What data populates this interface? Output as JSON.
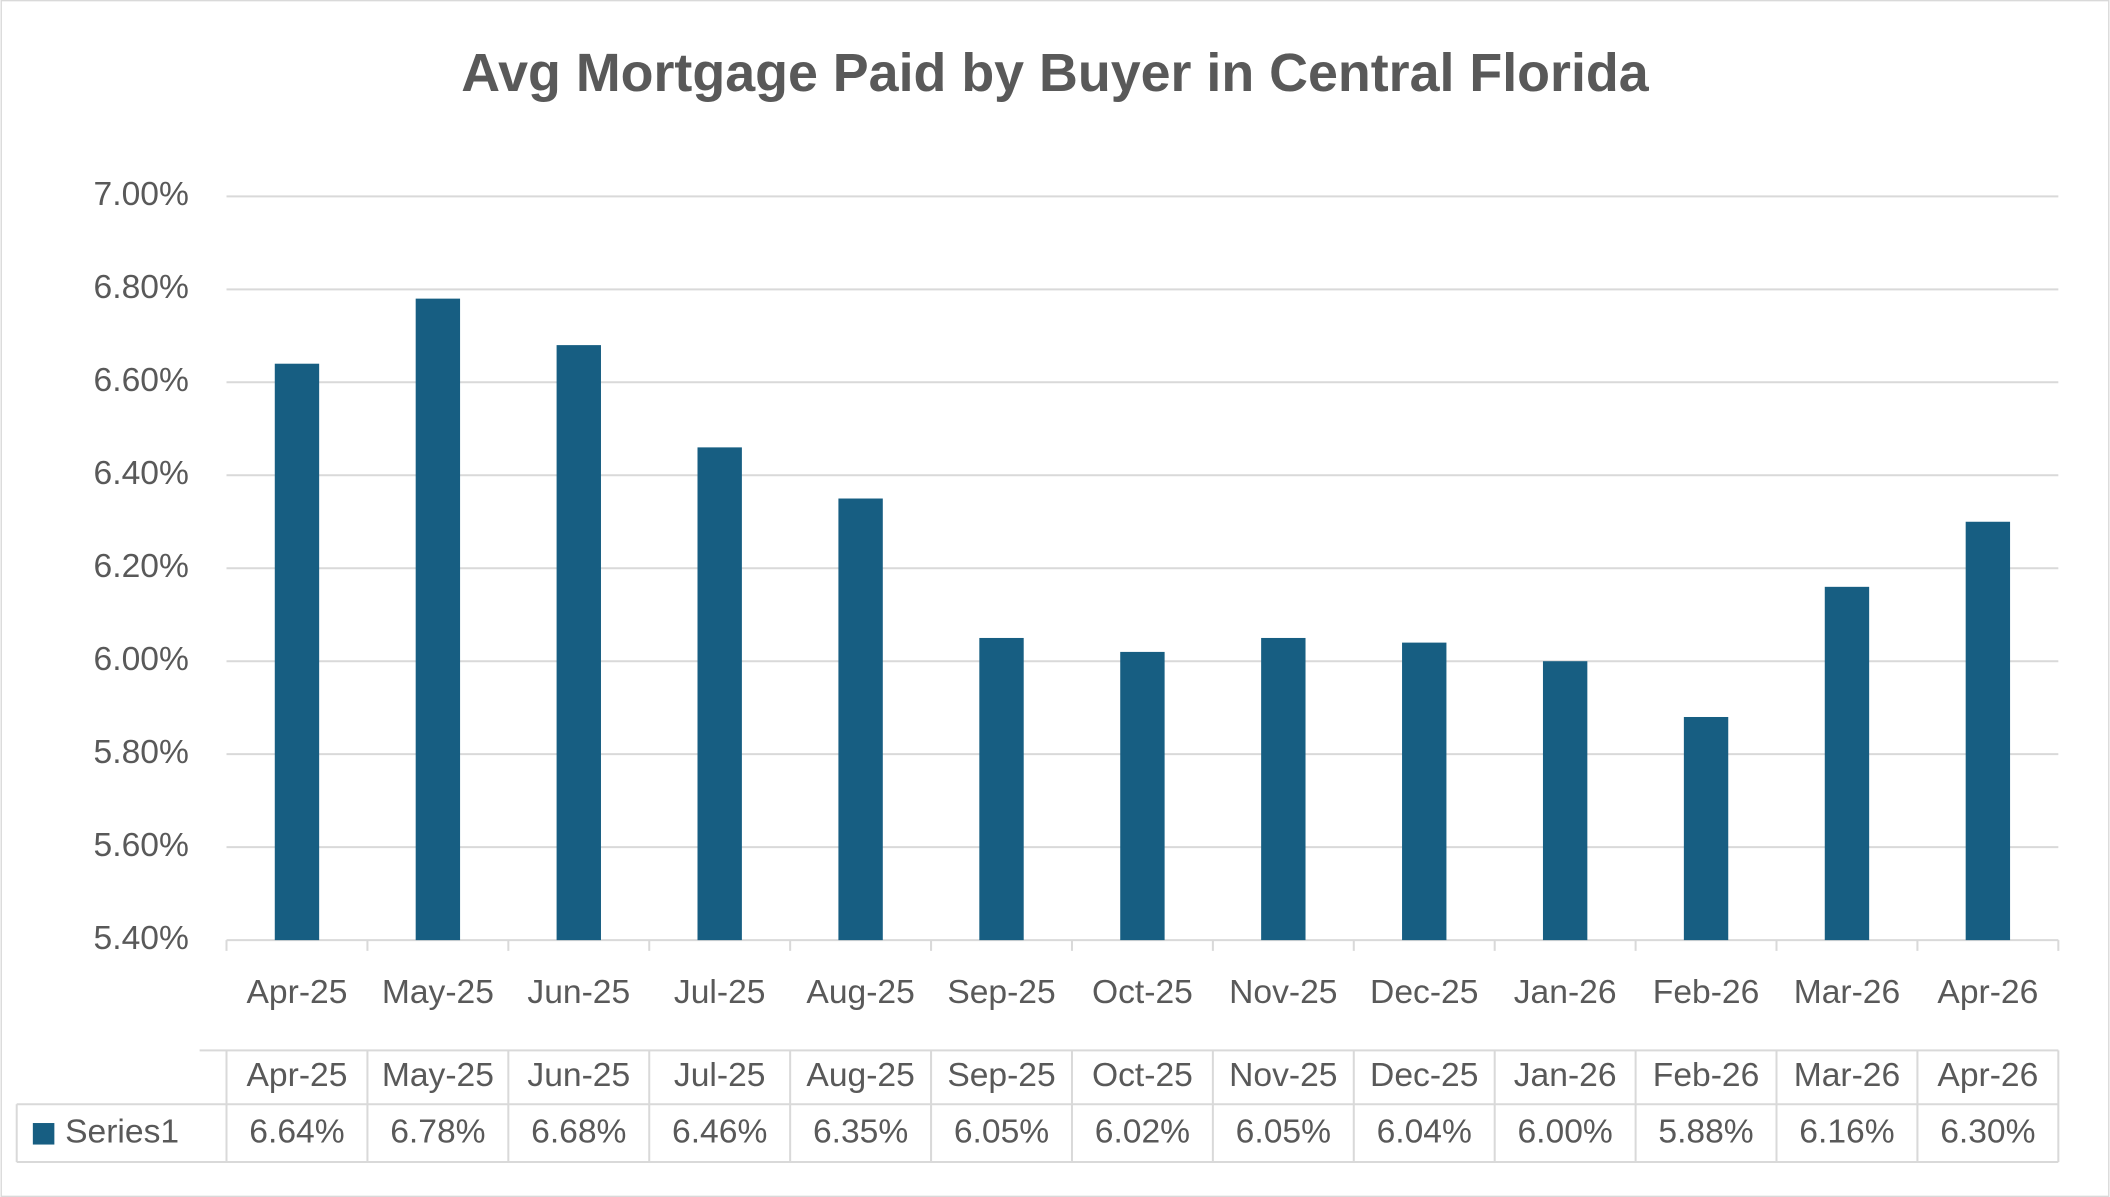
{
  "chart_data": {
    "type": "bar",
    "title": "Avg Mortgage Paid by Buyer in Central Florida",
    "categories": [
      "Apr-25",
      "May-25",
      "Jun-25",
      "Jul-25",
      "Aug-25",
      "Sep-25",
      "Oct-25",
      "Nov-25",
      "Dec-25",
      "Jan-26",
      "Feb-26",
      "Mar-26",
      "Apr-26"
    ],
    "series": [
      {
        "name": "Series1",
        "color": "#175e82",
        "values": [
          6.64,
          6.78,
          6.68,
          6.46,
          6.35,
          6.05,
          6.02,
          6.05,
          6.04,
          6.0,
          5.88,
          6.16,
          6.3
        ],
        "value_labels": [
          "6.64%",
          "6.78%",
          "6.68%",
          "6.46%",
          "6.35%",
          "6.05%",
          "6.02%",
          "6.05%",
          "6.04%",
          "6.00%",
          "5.88%",
          "6.16%",
          "6.30%"
        ]
      }
    ],
    "ylim": [
      5.4,
      7.0
    ],
    "yticks": [
      {
        "value": 5.4,
        "label": "5.40%"
      },
      {
        "value": 5.6,
        "label": "5.60%"
      },
      {
        "value": 5.8,
        "label": "5.80%"
      },
      {
        "value": 6.0,
        "label": "6.00%"
      },
      {
        "value": 6.2,
        "label": "6.20%"
      },
      {
        "value": 6.4,
        "label": "6.40%"
      },
      {
        "value": 6.6,
        "label": "6.60%"
      },
      {
        "value": 6.8,
        "label": "6.80%"
      },
      {
        "value": 7.0,
        "label": "7.00%"
      }
    ],
    "grid": true,
    "data_table": true
  }
}
